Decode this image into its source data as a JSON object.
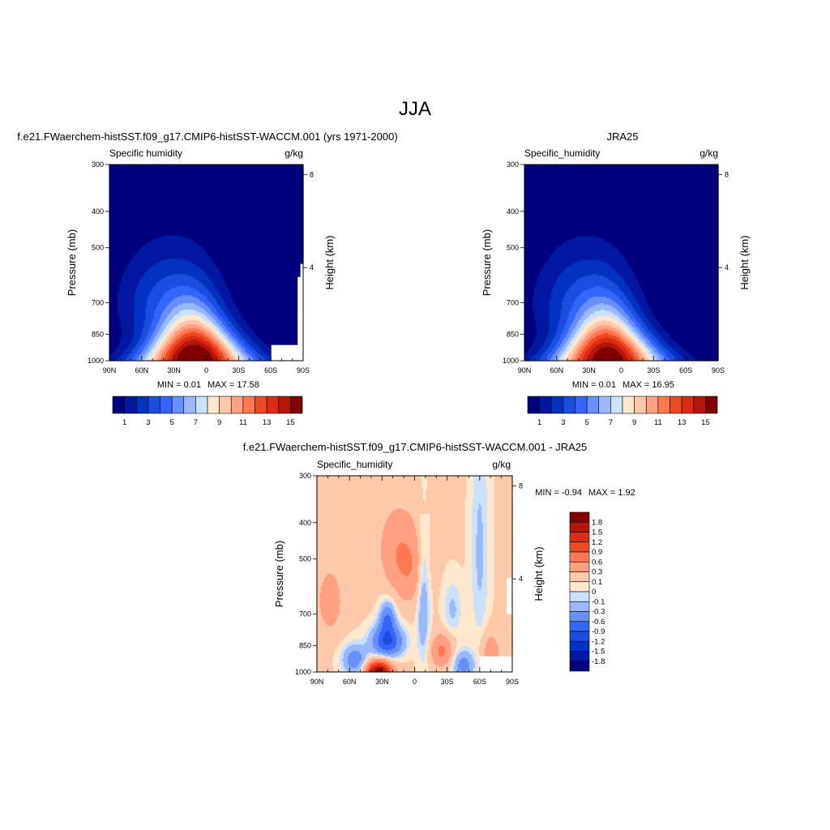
{
  "title": "JJA",
  "colors": {
    "abs_levels": [
      "#00007f",
      "#0019a0",
      "#0033c0",
      "#1a4ee0",
      "#3366ff",
      "#6690ff",
      "#99b8ff",
      "#cce0ff",
      "#ffe8cc",
      "#ffc8a8",
      "#ffa080",
      "#ff7850",
      "#ee4a22",
      "#dd2a10",
      "#b81408",
      "#800000"
    ],
    "diff_levels": [
      "#00007f",
      "#0019a0",
      "#0033c0",
      "#1a4ee0",
      "#3366ff",
      "#6690ff",
      "#99b8ff",
      "#cce0ff",
      "#ffe8cc",
      "#ffc8a8",
      "#ffa080",
      "#ff7850",
      "#ee4a22",
      "#dd2a10",
      "#b81408",
      "#800000"
    ]
  },
  "chart_data": [
    {
      "type": "heatmap",
      "panel_title": "f.e21.FWaerchem-histSST.f09_g17.CMIP6-histSST-WACCM.001 (yrs 1971-2000)",
      "left_label": "Specific humidity",
      "right_label": "g/kg",
      "xlabel": "",
      "ylabel": "Pressure (mb)",
      "ylabel_right": "Height (km)",
      "x_ticks": [
        "90N",
        "60N",
        "30N",
        "0",
        "30S",
        "60S",
        "90S"
      ],
      "x_values": [
        90,
        60,
        30,
        0,
        -30,
        -60,
        -90
      ],
      "y_ticks": [
        "300",
        "400",
        "500",
        "700",
        "850",
        "1000"
      ],
      "y_values": [
        300,
        400,
        500,
        700,
        850,
        1000
      ],
      "height_ticks": [
        "8",
        "4"
      ],
      "height_values": [
        8,
        4
      ],
      "xlim": [
        90,
        -90
      ],
      "ylim": [
        300,
        1000
      ],
      "y_scale": "log",
      "min_text": "MIN =   0.01",
      "max_text": "MAX =  17.58",
      "min": 0.01,
      "max": 17.58,
      "colorbar_labels": [
        "1",
        "3",
        "5",
        "7",
        "9",
        "11",
        "13",
        "15"
      ],
      "peak": {
        "lat": 10,
        "value": 17.58
      }
    },
    {
      "type": "heatmap",
      "panel_title": "JRA25",
      "left_label": "Specific_humidity",
      "right_label": "g/kg",
      "xlabel": "",
      "ylabel": "Pressure (mb)",
      "ylabel_right": "Height (km)",
      "x_ticks": [
        "90N",
        "60N",
        "30N",
        "0",
        "30S",
        "60S",
        "90S"
      ],
      "x_values": [
        90,
        60,
        30,
        0,
        -30,
        -60,
        -90
      ],
      "y_ticks": [
        "300",
        "400",
        "500",
        "700",
        "850",
        "1000"
      ],
      "y_values": [
        300,
        400,
        500,
        700,
        850,
        1000
      ],
      "height_ticks": [
        "8",
        "4"
      ],
      "height_values": [
        8,
        4
      ],
      "xlim": [
        90,
        -90
      ],
      "ylim": [
        300,
        1000
      ],
      "y_scale": "log",
      "min_text": "MIN =   0.01",
      "max_text": "MAX =  16.95",
      "min": 0.01,
      "max": 16.95,
      "colorbar_labels": [
        "1",
        "3",
        "5",
        "7",
        "9",
        "11",
        "13",
        "15"
      ],
      "peak": {
        "lat": 12,
        "value": 16.95
      }
    },
    {
      "type": "heatmap",
      "panel_title": "f.e21.FWaerchem-histSST.f09_g17.CMIP6-histSST-WACCM.001 - JRA25",
      "left_label": "Specific_humidity",
      "right_label": "g/kg",
      "xlabel": "",
      "ylabel": "Pressure (mb)",
      "ylabel_right": "Height (km)",
      "x_ticks": [
        "90N",
        "60N",
        "30N",
        "0",
        "30S",
        "60S",
        "90S"
      ],
      "x_values": [
        90,
        60,
        30,
        0,
        -30,
        -60,
        -90
      ],
      "y_ticks": [
        "300",
        "400",
        "500",
        "700",
        "850",
        "1000"
      ],
      "y_values": [
        300,
        400,
        500,
        700,
        850,
        1000
      ],
      "height_ticks": [
        "8",
        "4"
      ],
      "height_values": [
        8,
        4
      ],
      "xlim": [
        90,
        -90
      ],
      "ylim": [
        300,
        1000
      ],
      "y_scale": "log",
      "min_text": "MIN =  -0.94",
      "max_text": "MAX =   1.92",
      "min": -0.94,
      "max": 1.92,
      "colorbar_labels": [
        "1.8",
        "1.5",
        "1.2",
        "0.9",
        "0.6",
        "0.3",
        "0.1",
        "0",
        "-0.1",
        "-0.3",
        "-0.6",
        "-0.9",
        "-1.2",
        "-1.5",
        "-1.8"
      ],
      "colorbar_levels": [
        -1.8,
        -1.5,
        -1.2,
        -0.9,
        -0.6,
        -0.3,
        -0.1,
        0,
        0.1,
        0.3,
        0.6,
        0.9,
        1.2,
        1.5,
        1.8
      ]
    }
  ]
}
